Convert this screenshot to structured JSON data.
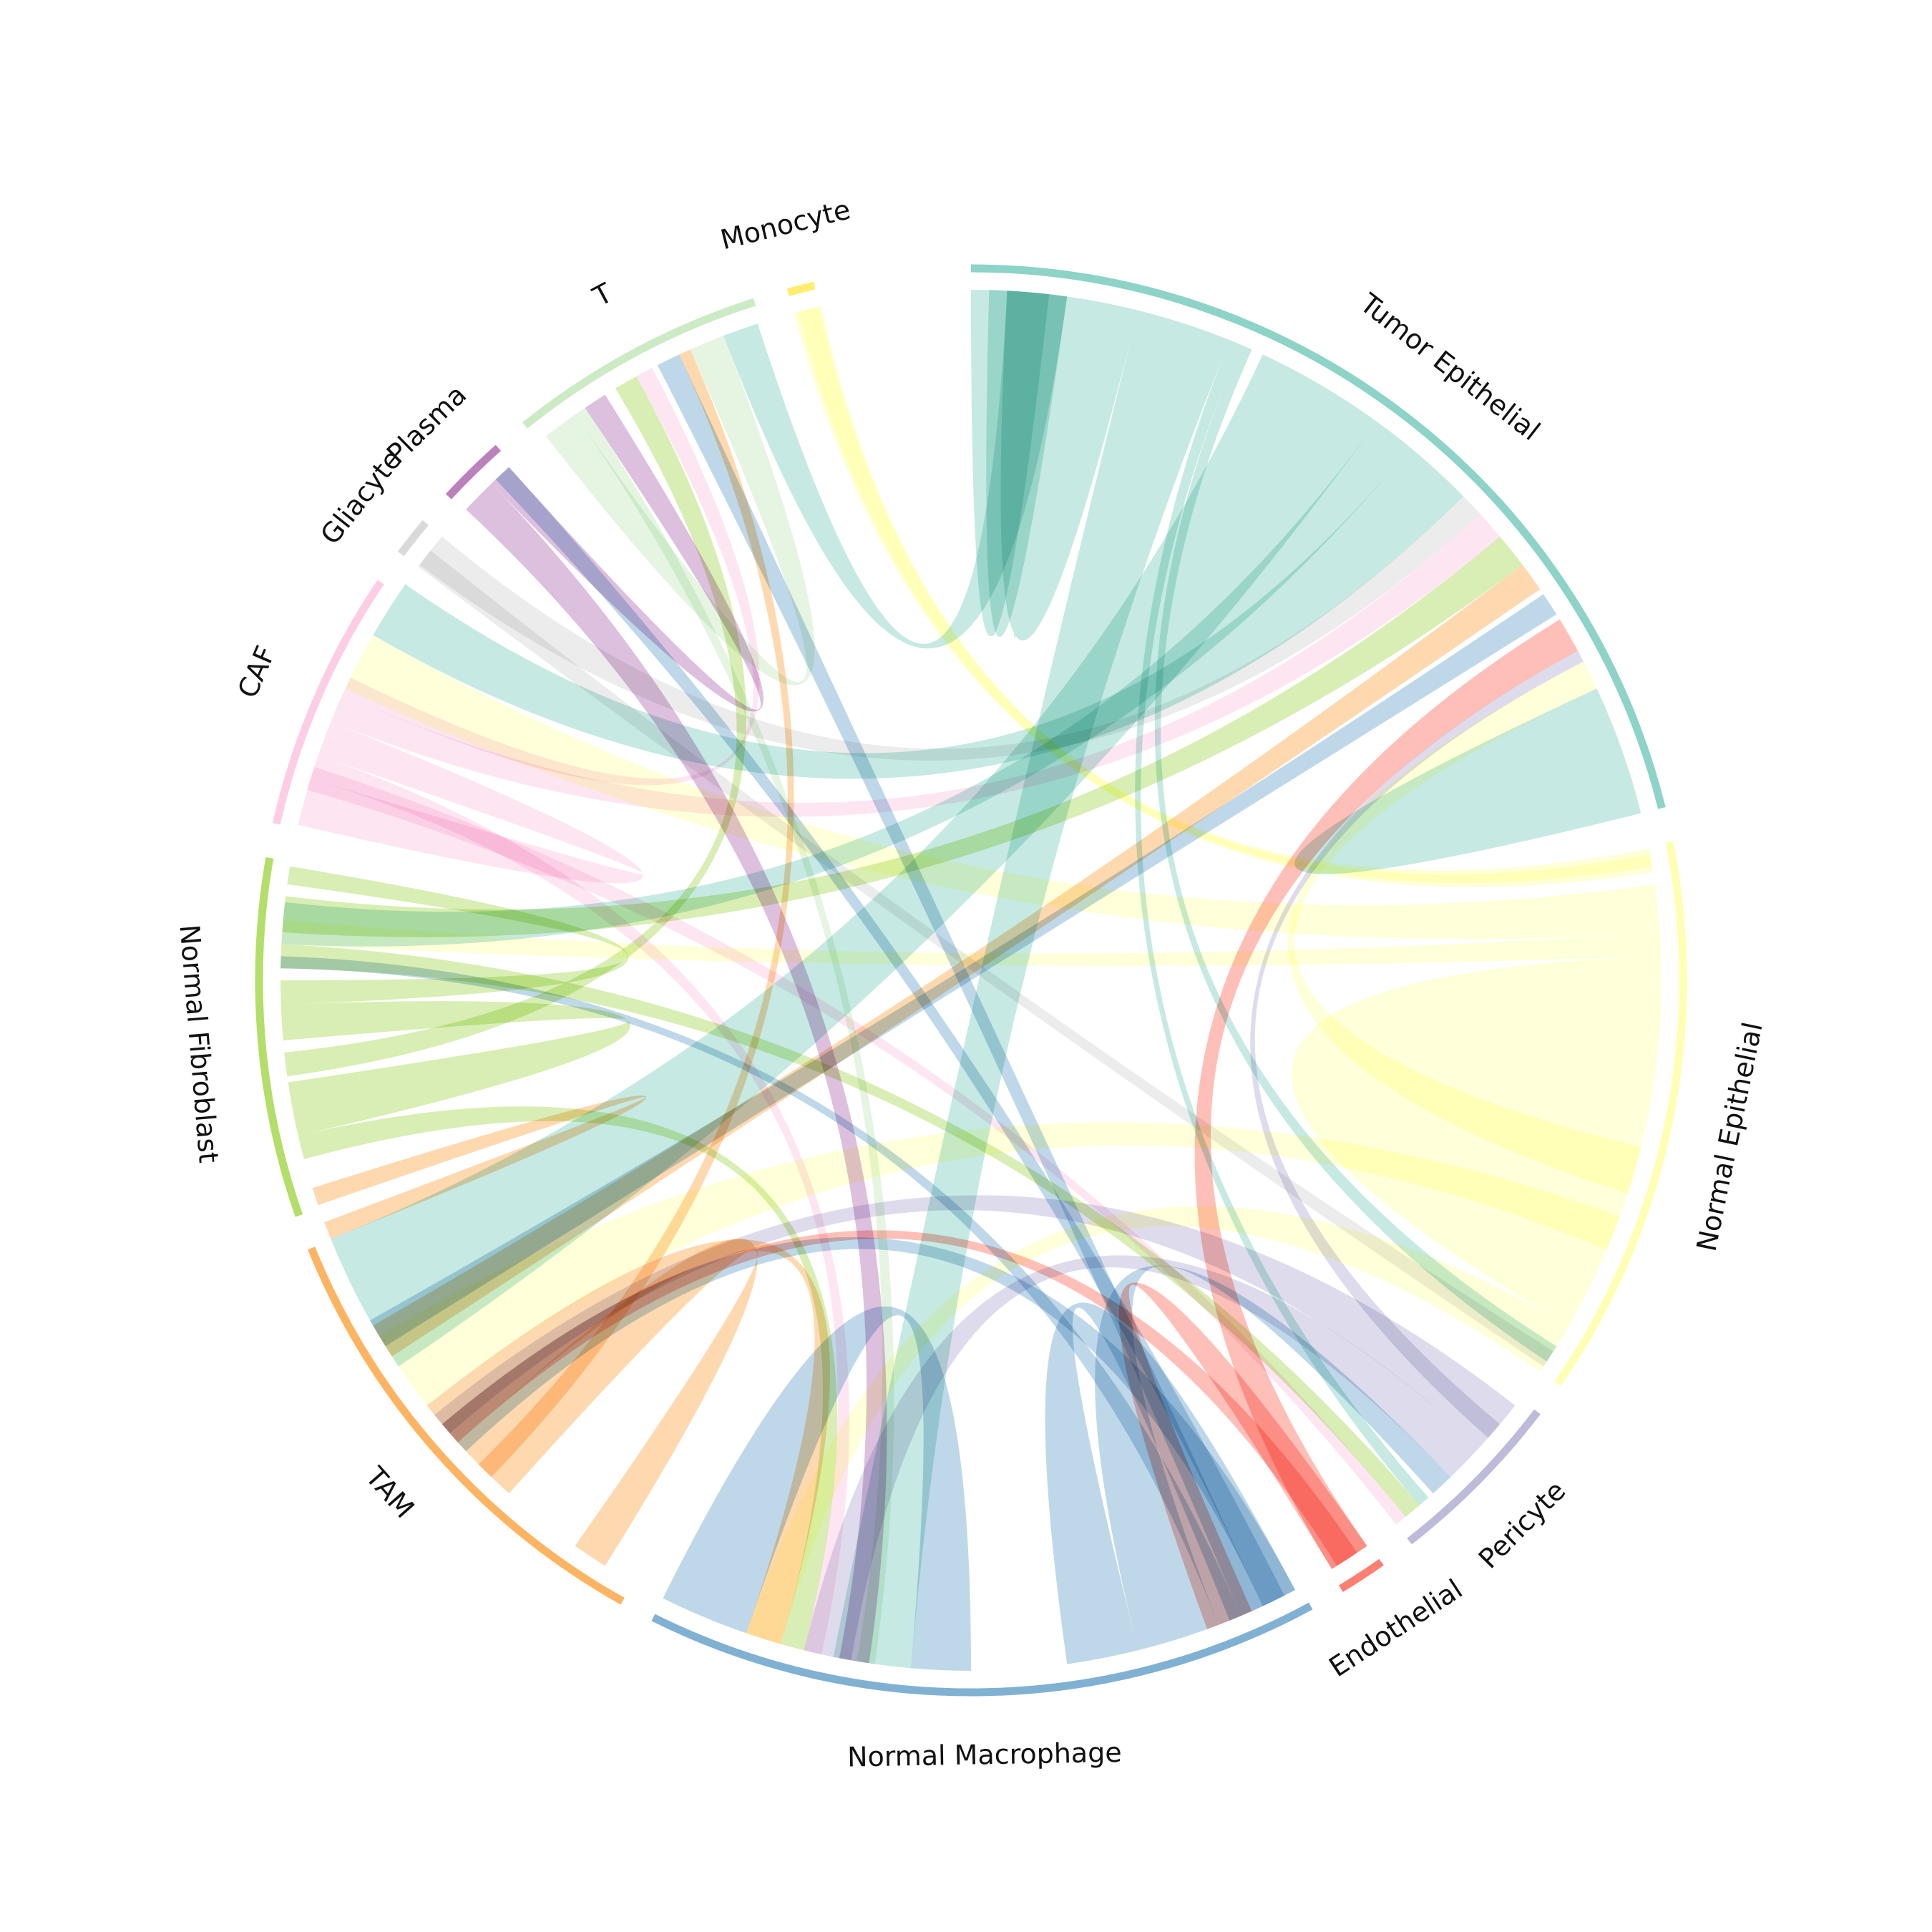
{
  "chart_data": {
    "type": "chord",
    "title": "",
    "nodes": [
      {
        "name": "Tumor Epithelial",
        "color": "#8dd3c7",
        "start_deg": 0.0,
        "end_deg": 76.0
      },
      {
        "name": "Normal Epithelial",
        "color": "#ffffb3",
        "start_deg": 78.8,
        "end_deg": 124.5
      },
      {
        "name": "Pericyte",
        "color": "#bebada",
        "start_deg": 127.3,
        "end_deg": 142.0
      },
      {
        "name": "Endothelial",
        "color": "#fb8072",
        "start_deg": 144.8,
        "end_deg": 148.7
      },
      {
        "name": "Normal Macrophage",
        "color": "#80b1d3",
        "start_deg": 151.5,
        "end_deg": 206.5
      },
      {
        "name": "TAM",
        "color": "#fdb462",
        "start_deg": 209.3,
        "end_deg": 247.9
      },
      {
        "name": "Normal Fibroblast",
        "color": "#b3de69",
        "start_deg": 250.7,
        "end_deg": 279.9
      },
      {
        "name": "CAF",
        "color": "#fccde5",
        "start_deg": 282.7,
        "end_deg": 304.0
      },
      {
        "name": "Gliacyte",
        "color": "#d9d9d9",
        "start_deg": 306.8,
        "end_deg": 310.0
      },
      {
        "name": "Plasma",
        "color": "#bc80bd",
        "start_deg": 312.8,
        "end_deg": 318.4
      },
      {
        "name": "T",
        "color": "#ccebc5",
        "start_deg": 321.2,
        "end_deg": 342.3
      },
      {
        "name": "Monocyte",
        "color": "#ffed6f",
        "start_deg": 345.1,
        "end_deg": 347.3
      }
    ],
    "links": [
      {
        "from": "Tumor Epithelial",
        "to": "Tumor Epithelial",
        "color": "#8dd3c7",
        "a1": [
          0.0,
          5.7
        ],
        "a2": [
          1.5,
          6.5
        ]
      },
      {
        "from": "Tumor Epithelial",
        "to": "Tumor Epithelial",
        "color": "#8dd3c7",
        "a1": [
          1.5,
          6.5
        ],
        "a2": [
          3.0,
          8.0
        ]
      },
      {
        "from": "Tumor Epithelial",
        "to": "Tumor Epithelial",
        "color": "#8dd3c7",
        "a1": [
          6.5,
          14.0
        ],
        "a2": [
          3.0,
          8.0
        ]
      },
      {
        "from": "Tumor Epithelial",
        "to": "Normal Macrophage",
        "color": "#8dd3c7",
        "a1": [
          14.0,
          22.0
        ],
        "a2": [
          185.0,
          191.5
        ]
      },
      {
        "from": "Tumor Epithelial",
        "to": "Pericyte",
        "color": "#8dd3c7",
        "a1": [
          22.0,
          23.0
        ],
        "a2": [
          138.5,
          139.5
        ]
      },
      {
        "from": "Tumor Epithelial",
        "to": "Normal Epithelial",
        "color": "#8dd3c7",
        "a1": [
          23.0,
          24.0
        ],
        "a2": [
          122.0,
          123.5
        ]
      },
      {
        "from": "Tumor Epithelial",
        "to": "TAM",
        "color": "#8dd3c7",
        "a1": [
          25.0,
          36.0
        ],
        "a2": [
          236.0,
          248.0
        ]
      },
      {
        "from": "Tumor Epithelial",
        "to": "Normal Fibroblast",
        "color": "#8dd3c7",
        "a1": [
          36.0,
          39.5
        ],
        "a2": [
          273.0,
          276.5
        ]
      },
      {
        "from": "Tumor Epithelial",
        "to": "CAF",
        "color": "#8dd3c7",
        "a1": [
          39.5,
          45.5
        ],
        "a2": [
          300.0,
          305.0
        ]
      },
      {
        "from": "Gliacyte",
        "to": "Tumor Epithelial",
        "color": "#d9d9d9",
        "a1": [
          307.0,
          310.0
        ],
        "a2": [
          45.5,
          47.5
        ]
      },
      {
        "from": "CAF",
        "to": "Tumor Epithelial",
        "color": "#fccde5",
        "a1": [
          292.0,
          294.5
        ],
        "a2": [
          47.5,
          50.0
        ]
      },
      {
        "from": "Normal Fibroblast",
        "to": "TAM",
        "color": "#b3de69",
        "a1": [
          274.0,
          277.0
        ],
        "a2": [
          50.0,
          53.0
        ]
      },
      {
        "from": "TAM",
        "to": "Tumor Epithelial",
        "color": "#fdb462",
        "a1": [
          237.0,
          240.0
        ],
        "a2": [
          53.0,
          55.5
        ]
      },
      {
        "from": "Normal Macrophage",
        "to": "Tumor Epithelial",
        "color": "#80b1d3",
        "a1": [
          238.0,
          240.5
        ],
        "a2": [
          56.0,
          58.0
        ]
      },
      {
        "from": "Endothelial",
        "to": "Tumor Epithelial",
        "color": "#fb8072",
        "a1": [
          145.0,
          148.5
        ],
        "a2": [
          58.5,
          61.5
        ]
      },
      {
        "from": "Pericyte",
        "to": "Tumor Epithelial",
        "color": "#bebada",
        "a1": [
          130.0,
          131.5
        ],
        "a2": [
          61.5,
          62.5
        ]
      },
      {
        "from": "Normal Epithelial",
        "to": "Tumor Epithelial",
        "color": "#ffffb3",
        "a1": [
          104.0,
          108.0
        ],
        "a2": [
          62.5,
          65.0
        ]
      },
      {
        "from": "Tumor Epithelial",
        "to": "Tumor Epithelial",
        "color": "#8dd3c7",
        "a1": [
          65.0,
          70.5
        ],
        "a2": [
          70.5,
          76.0
        ]
      },
      {
        "from": "Normal Epithelial",
        "to": "Normal Epithelial",
        "color": "#ffffb3",
        "a1": [
          88.0,
          101.0
        ],
        "a2": [
          101.0,
          120.0
        ]
      },
      {
        "from": "Normal Epithelial",
        "to": "Monocyte",
        "color": "#ffffb3",
        "a1": [
          79.5,
          81.0
        ],
        "a2": [
          345.5,
          347.5
        ]
      },
      {
        "from": "Normal Epithelial",
        "to": "CAF",
        "color": "#ffffb3",
        "a1": [
          82.0,
          86.0
        ],
        "a2": [
          295.0,
          300.0
        ]
      },
      {
        "from": "Normal Epithelial",
        "to": "Normal Fibroblast",
        "color": "#ffffb3",
        "a1": [
          86.0,
          88.0
        ],
        "a2": [
          273.0,
          275.0
        ]
      },
      {
        "from": "Normal Epithelial",
        "to": "TAM",
        "color": "#ffffb3",
        "a1": [
          110.0,
          113.0
        ],
        "a2": [
          232.0,
          239.0
        ]
      },
      {
        "from": "Normal Epithelial",
        "to": "Normal Macrophage",
        "color": "#ffffb3",
        "a1": [
          120.0,
          124.5
        ],
        "a2": [
          196.0,
          199.0
        ]
      },
      {
        "from": "Pericyte",
        "to": "TAM",
        "color": "#bebada",
        "a1": [
          128.0,
          132.5
        ],
        "a2": [
          229.0,
          231.0
        ]
      },
      {
        "from": "Pericyte",
        "to": "Normal Macrophage",
        "color": "#bebada",
        "a1": [
          132.5,
          136.0
        ],
        "a2": [
          190.0,
          194.0
        ]
      },
      {
        "from": "Normal Macrophage",
        "to": "Pericyte",
        "color": "#80b1d3",
        "a1": [
          159.0,
          166.0
        ],
        "a2": [
          136.0,
          138.0
        ]
      },
      {
        "from": "Normal Fibroblast",
        "to": "Normal Epithelial",
        "color": "#b3de69",
        "a1": [
          271.0,
          273.0
        ],
        "a2": [
          139.5,
          141.0
        ]
      },
      {
        "from": "CAF",
        "to": "Normal Epithelial",
        "color": "#fccde5",
        "a1": [
          286.0,
          288.0
        ],
        "a2": [
          141.0,
          142.0
        ]
      },
      {
        "from": "Endothelial",
        "to": "Normal Macrophage",
        "color": "#fb8072",
        "a1": [
          145.0,
          148.5
        ],
        "a2": [
          156.0,
          160.0
        ]
      },
      {
        "from": "Endothelial",
        "to": "TAM",
        "color": "#fb8072",
        "a1": [
          146.0,
          148.0
        ],
        "a2": [
          228.0,
          230.0
        ]
      },
      {
        "from": "Normal Macrophage",
        "to": "Normal Macrophage",
        "color": "#80b1d3",
        "a1": [
          152.0,
          158.0
        ],
        "a2": [
          166.0,
          172.0
        ]
      },
      {
        "from": "Normal Macrophage",
        "to": "TAM",
        "color": "#80b1d3",
        "a1": [
          152.0,
          155.0
        ],
        "a2": [
          227.0,
          230.0
        ]
      },
      {
        "from": "Normal Macrophage",
        "to": "Plasma",
        "color": "#80b1d3",
        "a1": [
          153.0,
          155.0
        ],
        "a2": [
          316.5,
          318.0
        ]
      },
      {
        "from": "Normal Macrophage",
        "to": "T",
        "color": "#80b1d3",
        "a1": [
          155.0,
          157.0
        ],
        "a2": [
          333.0,
          335.0
        ]
      },
      {
        "from": "Normal Macrophage",
        "to": "Normal Fibroblast",
        "color": "#80b1d3",
        "a1": [
          157.0,
          159.0
        ],
        "a2": [
          271.0,
          272.0
        ]
      },
      {
        "from": "Normal Macrophage",
        "to": "Normal Macrophage",
        "color": "#80b1d3",
        "a1": [
          199.0,
          206.5
        ],
        "a2": [
          180.0,
          185.0
        ]
      },
      {
        "from": "TAM",
        "to": "TAM",
        "color": "#fdb462",
        "a1": [
          222.0,
          228.0
        ],
        "a2": [
          212.0,
          215.0
        ]
      },
      {
        "from": "TAM",
        "to": "Normal Macrophage",
        "color": "#fdb462",
        "a1": [
          228.0,
          232.0
        ],
        "a2": [
          196.0,
          199.0
        ]
      },
      {
        "from": "TAM",
        "to": "T",
        "color": "#fdb462",
        "a1": [
          224.0,
          225.5
        ],
        "a2": [
          335.0,
          336.0
        ]
      },
      {
        "from": "TAM",
        "to": "Normal Fibroblast",
        "color": "#fdb462",
        "a1": [
          248.0,
          249.5
        ],
        "a2": [
          251.0,
          252.5
        ]
      },
      {
        "from": "Normal Fibroblast",
        "to": "Normal Macrophage",
        "color": "#b3de69",
        "a1": [
          255.0,
          257.0
        ],
        "a2": [
          194.0,
          196.0
        ]
      },
      {
        "from": "Normal Fibroblast",
        "to": "Normal Fibroblast",
        "color": "#b3de69",
        "a1": [
          257.0,
          261.5
        ],
        "a2": [
          265.0,
          268.0
        ]
      },
      {
        "from": "Normal Fibroblast",
        "to": "T",
        "color": "#b3de69",
        "a1": [
          262.0,
          264.0
        ],
        "a2": [
          329.0,
          331.0
        ]
      },
      {
        "from": "Normal Fibroblast",
        "to": "Normal Fibroblast",
        "color": "#b3de69",
        "a1": [
          278.0,
          279.5
        ],
        "a2": [
          268.0,
          270.0
        ]
      },
      {
        "from": "CAF",
        "to": "CAF",
        "color": "#fccde5",
        "a1": [
          283.0,
          287.0
        ],
        "a2": [
          289.0,
          292.0
        ]
      },
      {
        "from": "CAF",
        "to": "Normal Macrophage",
        "color": "#fccde5",
        "a1": [
          287.0,
          289.0
        ],
        "a2": [
          192.5,
          194.0
        ]
      },
      {
        "from": "CAF",
        "to": "T",
        "color": "#fccde5",
        "a1": [
          294.5,
          296.0
        ],
        "a2": [
          331.0,
          332.5
        ]
      },
      {
        "from": "Gliacyte",
        "to": "Normal Epithelial",
        "color": "#d9d9d9",
        "a1": [
          306.8,
          308.5
        ],
        "a2": [
          122.5,
          124.0
        ]
      },
      {
        "from": "Plasma",
        "to": "Normal Macrophage",
        "color": "#bc80bd",
        "a1": [
          313.0,
          316.0
        ],
        "a2": [
          188.5,
          191.0
        ]
      },
      {
        "from": "Plasma",
        "to": "T",
        "color": "#bc80bd",
        "a1": [
          316.0,
          318.0
        ],
        "a2": [
          326.0,
          328.0
        ]
      },
      {
        "from": "T",
        "to": "T",
        "color": "#ccebc5",
        "a1": [
          322.0,
          325.0
        ],
        "a2": [
          336.0,
          339.0
        ]
      },
      {
        "from": "T",
        "to": "Normal Macrophage",
        "color": "#ccebc5",
        "a1": [
          325.0,
          326.0
        ],
        "a2": [
          188.0,
          189.5
        ]
      },
      {
        "from": "T",
        "to": "Tumor Epithelial",
        "color": "#8dd3c7",
        "a1": [
          339.0,
          342.0
        ],
        "a2": [
          3.0,
          8.0
        ]
      },
      {
        "from": "Monocyte",
        "to": "Normal Epithelial",
        "color": "#ffffb3",
        "a1": [
          345.1,
          347.3
        ],
        "a2": [
          79.0,
          80.5
        ]
      }
    ]
  }
}
